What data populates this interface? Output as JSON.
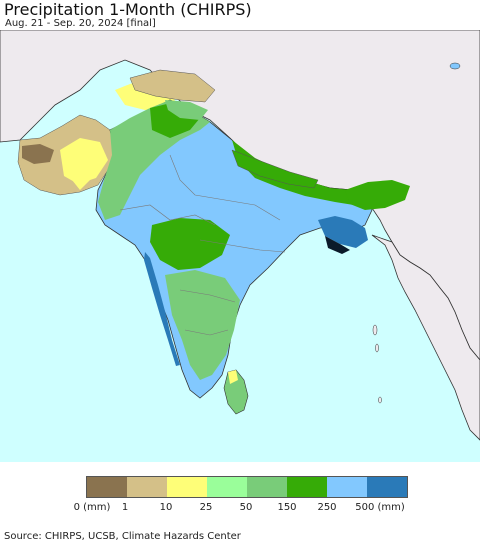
{
  "map": {
    "title": "Precipitation 1-Month (CHIRPS)",
    "subtitle": "Aug. 21 - Sep. 20, 2024 [final]",
    "source": "Source: CHIRPS, UCSB, Climate Hazards Center",
    "colors": {
      "ocean": "#cfffff",
      "land_outside": "#eeeaee",
      "border": "#333333"
    }
  },
  "legend": {
    "swatches": [
      {
        "color": "#8a734f"
      },
      {
        "color": "#d4c088"
      },
      {
        "color": "#fefe78"
      },
      {
        "color": "#9afe9a"
      },
      {
        "color": "#79cc79"
      },
      {
        "color": "#36ab07"
      },
      {
        "color": "#82c8fe"
      },
      {
        "color": "#2a7ab8"
      }
    ],
    "ticks": [
      "0 (mm)",
      "1",
      "10",
      "25",
      "50",
      "150",
      "250",
      "500 (mm)"
    ]
  }
}
